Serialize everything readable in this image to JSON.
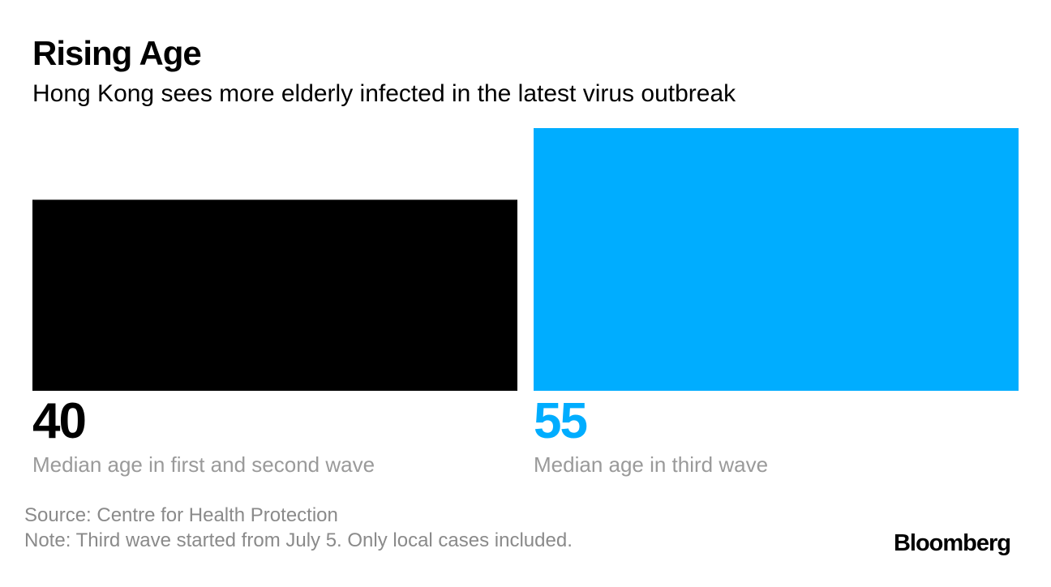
{
  "chart_data": {
    "type": "bar",
    "title": "Rising Age",
    "subtitle": "Hong Kong sees more elderly infected in the latest virus outbreak",
    "categories": [
      "Median age in first and second wave",
      "Median age in third wave"
    ],
    "values": [
      40,
      55
    ],
    "colors": [
      "#000000",
      "#00adff"
    ],
    "source": "Source: Centre for Health Protection",
    "note": "Note: Third wave started from July 5. Only local cases included.",
    "logo": "Bloomberg"
  }
}
